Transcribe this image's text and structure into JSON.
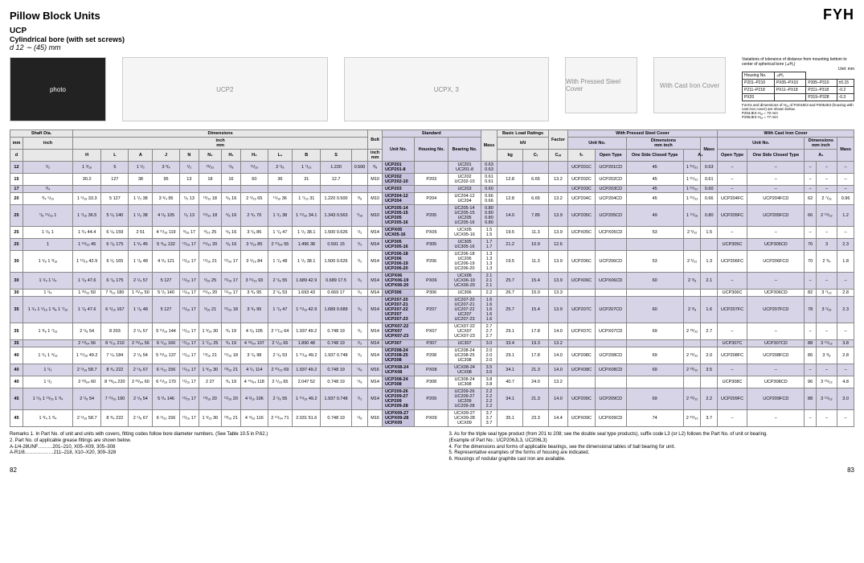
{
  "page": {
    "title": "Pillow Block Units",
    "brand": "FYH",
    "ucp": "UCP",
    "desc": "Cylindrical bore (with set screws)",
    "range": "d 12 ∼ (45) mm",
    "pg_left": "82",
    "pg_right": "83"
  },
  "diagram_labels": {
    "photo": "photo",
    "ucp2": "UCP2",
    "ucpx3": "UCPX, 3",
    "pressed": "With Pressed Steel Cover",
    "cast": "With Cast Iron Cover"
  },
  "tolerance": {
    "note": "Variations of tolerance of distance from mounting bottom to center of spherical bore (⊿H₁)",
    "unit": "Unit: mm",
    "rows": [
      [
        "Housing No.",
        "⊿H₁"
      ],
      [
        "P201–P210",
        "PX05–PX10",
        "P305–P310",
        "±0.15"
      ],
      [
        "P211–P218",
        "PX11–PX18",
        "P311–P318",
        "-0.2"
      ],
      [
        "PX20",
        "",
        "P319–P328",
        "-0.3"
      ]
    ],
    "footnote": "Forms and dimensions of H₁ₐ of P204JE3 and P205JE3 (housing with cast iron cover) are shown below.",
    "extras": [
      "P204JE3 H₁ₐ = 70 mm",
      "P205JE3 H₁ₐ = 77 mm"
    ]
  },
  "headers": {
    "shaft": "Shaft Dia.",
    "dim": "Dimensions",
    "bolt": "Bolt",
    "standard": "Standard",
    "mass": "Mass",
    "load": "Basic Load Ratings",
    "factor": "Factor",
    "pressed": "With Pressed Steel Cover",
    "cast": "With Cast Iron Cover",
    "mm": "mm",
    "inch": "inch",
    "unit": "Unit No.",
    "housing": "Housing No.",
    "bearing": "Bearing No.",
    "kg": "kg",
    "kn": "kN",
    "open": "Open Type",
    "closed": "One Side Closed Type",
    "a1": "A₁",
    "cr": "Cᵣ",
    "cor": "Cₒᵣ",
    "f0": "f₀",
    "d": "d",
    "H": "H",
    "L": "L",
    "A": "A",
    "J": "J",
    "N": "N",
    "N1": "N₁",
    "H1": "H₁",
    "H2": "H₂",
    "L1": "L₁",
    "B": "B",
    "S": "S"
  },
  "rows": [
    {
      "d": "12",
      "in": "¹/₂",
      "H": "1 ³/₁₆",
      "L": "5",
      "A": "1 ¹/₂",
      "J": "3 ³/₄",
      "N": "¹/₂",
      "N1": "¹³/₃₂",
      "H1": "⁵/₈",
      "H2": "¹¹/₁₆",
      "L1": "2 ¹/₈",
      "B": "1 ⁷/₃₂",
      "S": "1.220",
      "bolt": "0.500",
      "boltmm": "³/₈",
      "units": [
        "UCP201",
        "UCP201-8"
      ],
      "housing": "",
      "bearing": [
        "UC201",
        "UC201-8"
      ],
      "mass": [
        "0.63",
        "0.63"
      ],
      "cr": "",
      "cor": "",
      "f0": "",
      "p_open": "UCP201C",
      "p_closed": "UCP201CD",
      "p_a": "45",
      "p_ai": "1 ²⁵/₃₂",
      "p_mass": "0.63",
      "c_open": "–",
      "c_closed": "–",
      "c_a": "–",
      "c_ai": "–",
      "c_mass": "–"
    },
    {
      "d": "15",
      "in": "",
      "H": "30.2",
      "L": "127",
      "A": "38",
      "J": "95",
      "N": "13",
      "N1": "18",
      "H1": "16",
      "H2": "60",
      "L1": "36",
      "B": "31",
      "S": "12.7",
      "bolt": "",
      "boltmm": "M10",
      "units": [
        "UCP202",
        "UCP202-10"
      ],
      "housing": "P203",
      "bearing": [
        "UC202",
        "UC202-10"
      ],
      "mass": [
        "0.61",
        "0.61"
      ],
      "cr": "12.8",
      "cor": "6.65",
      "f0": "13.2",
      "p_open": "UCP202C",
      "p_closed": "UCP202CD",
      "p_a": "45",
      "p_ai": "1 ²⁵/₃₂",
      "p_mass": "0.61",
      "c_open": "–",
      "c_closed": "–",
      "c_a": "–",
      "c_ai": "–",
      "c_mass": "–"
    },
    {
      "d": "17",
      "in": "³/₄",
      "H": "",
      "L": "",
      "A": "",
      "J": "",
      "N": "",
      "N1": "",
      "H1": "",
      "H2": "",
      "L1": "",
      "B": "",
      "S": "",
      "bolt": "",
      "boltmm": "",
      "units": [
        "UCP203"
      ],
      "housing": "",
      "bearing": [
        "UC203"
      ],
      "mass": [
        "0.60"
      ],
      "cr": "",
      "cor": "",
      "f0": "",
      "p_open": "UCP203C",
      "p_closed": "UCP203CD",
      "p_a": "45",
      "p_ai": "1 ²⁵/₃₂",
      "p_mass": "0.60",
      "c_open": "–",
      "c_closed": "–",
      "c_a": "–",
      "c_ai": "–",
      "c_mass": "–"
    },
    {
      "d": "20",
      "in": "³/₄ ⁵/₁₆",
      "H": "1 ⁵/₁₆ 33.3",
      "L": "5 127",
      "A": "1 ¹/₂ 38",
      "J": "3 ³/₄ 95",
      "N": "¹/₂ 13",
      "N1": "¹³/₃₂ 18",
      "H1": "⁵/₈ 16",
      "H2": "2 ⁵/₁₆ 65",
      "L1": "¹¹/₁₆ 36",
      "B": "1 ⁷/₃₂ 31",
      "S": "1.220 0.500",
      "bolt": "³/₈",
      "boltmm": "M10",
      "units": [
        "UCP204-12",
        "UCP204"
      ],
      "housing": "P204",
      "bearing": [
        "UC204-12",
        "UC204"
      ],
      "mass": [
        "0.66",
        "0.66"
      ],
      "cr": "12.8",
      "cor": "6.65",
      "f0": "13.2",
      "p_open": "UCP204C",
      "p_closed": "UCP204CD",
      "p_a": "45",
      "p_ai": "1 ²⁵/₃₂",
      "p_mass": "0.66",
      "c_open": "UCP204FC",
      "c_closed": "UCP204FCD",
      "c_a": "62",
      "c_ai": "2 ⁷/₁₆",
      "c_mass": "0.96"
    },
    {
      "d": "25",
      "in": "⁷/₈ ¹⁵/₁₆ 1",
      "H": "1 ⁷/₁₆ 36.5",
      "L": "5 ¹/₂ 140",
      "A": "1 ¹/₂ 38",
      "J": "4 ¹/₈ 105",
      "N": "¹/₂ 13",
      "N1": "¹⁵/₃₂ 18",
      "H1": "⁵/₈ 16",
      "H2": "2 ³/₄ 70",
      "L1": "1 ¹/₂ 38",
      "B": "1 ¹¹/₃₂ 34.1",
      "S": "1.343 0.563",
      "bolt": "⁷/₁₆",
      "boltmm": "M10",
      "units": [
        "UCP205-14",
        "UCP205-15",
        "UCP205",
        "UCP205-16"
      ],
      "housing": "P205",
      "bearing": [
        "UC205-14",
        "UC205-15",
        "UC205",
        "UC205-16"
      ],
      "mass": [
        "0.80",
        "0.80",
        "0.80",
        "0.80"
      ],
      "cr": "14.0",
      "cor": "7.85",
      "f0": "13.9",
      "p_open": "UCP205C",
      "p_closed": "UCP205CD",
      "p_a": "49",
      "p_ai": "1 ¹⁵/₁₆",
      "p_mass": "0.80",
      "c_open": "UCP205FC",
      "c_closed": "UCP205FCD",
      "c_a": "66",
      "c_ai": "2 ¹⁹/₃₂",
      "c_mass": "1.2"
    },
    {
      "d": "25x",
      "in": "1 ¹/₈ 1",
      "H": "1 ³/₄ 44.4",
      "L": "6 ¹/₄ 159",
      "A": "2 51",
      "J": "4 ¹¹/₁₆ 119",
      "N": "⁹/₁₆ 17",
      "N1": "⁹/₃₂ 25",
      "H1": "⁵/₈ 16",
      "H2": "3 ¹/₈ 86",
      "L1": "1 ⁷/₈ 47",
      "B": "1 ¹/₂ 38.1",
      "S": "1.500 0.626",
      "bolt": "¹/₂",
      "boltmm": "M14",
      "units": [
        "UCPX05",
        "UCX05-16"
      ],
      "housing": "PX05",
      "bearing": [
        "UCX05",
        "UCX05-16"
      ],
      "mass": [
        "1.5",
        "1.5"
      ],
      "cr": "19.5",
      "cor": "11.3",
      "f0": "13.9",
      "p_open": "UCPX05C",
      "p_closed": "UCPX05CD",
      "p_a": "53",
      "p_ai": "2 ³/₃₂",
      "p_mass": "1.5",
      "c_open": "–",
      "c_closed": "–",
      "c_a": "–",
      "c_ai": "–",
      "c_mass": "–"
    },
    {
      "d": "25p",
      "in": "1",
      "H": "1 ²⁵/₃₂ 45",
      "L": "6 ⁷/₈ 175",
      "A": "1 ³/₄ 45",
      "J": "5 ³/₁₆ 132",
      "N": "¹¹/₁₆ 17",
      "N1": "²⁵/₃₂ 20",
      "H1": "⁵/₈ 16",
      "H2": "3 ⁵/₁₆ 85",
      "L1": "2 ¹¹/₆₄ 55",
      "B": "1.496 38",
      "S": "0.591 15",
      "bolt": "¹/₂",
      "boltmm": "M14",
      "units": [
        "UCP305",
        "UCP305-16"
      ],
      "housing": "P305",
      "bearing": [
        "UC305",
        "UC305-16"
      ],
      "mass": [
        "1.7",
        "1.7"
      ],
      "cr": "21.2",
      "cor": "10.9",
      "f0": "12.6",
      "p_open": "",
      "p_closed": "",
      "p_a": "",
      "p_ai": "",
      "p_mass": "",
      "c_open": "UCP305C",
      "c_closed": "UCP305CD",
      "c_a": "76",
      "c_ai": "3",
      "c_mass": "2.3"
    },
    {
      "d": "30",
      "in": "1 ¹/₈ 1 ³/₁₆",
      "H": "1 ¹¹/₁₆ 42.9",
      "L": "6 ¹/₂ 165",
      "A": "1 ⁷/₈ 48",
      "J": "4 ³/₄ 121",
      "N": "¹¹/₁₆ 17",
      "N1": "¹¹/₁₆ 21",
      "H1": "¹¹/₁₆ 17",
      "H2": "3 ⁵/₁₆ 84",
      "L1": "1 ⁷/₈ 48",
      "B": "1 ¹/₂ 38.1",
      "S": "1.500 0.626",
      "bolt": "¹/₂",
      "boltmm": "M14",
      "units": [
        "UCP206-18",
        "UCP206",
        "UCP206-19",
        "UCP206-20"
      ],
      "housing": "P206",
      "bearing": [
        "UC206-18",
        "UC206",
        "UC206-19",
        "UC206-20"
      ],
      "mass": [
        "1.3",
        "1.3",
        "1.3",
        "1.3"
      ],
      "cr": "19.5",
      "cor": "11.3",
      "f0": "13.9",
      "p_open": "UCP206C",
      "p_closed": "UCP206CD",
      "p_a": "53",
      "p_ai": "2 ³/₃₂",
      "p_mass": "1.3",
      "c_open": "UCP206FC",
      "c_closed": "UCP206FCD",
      "c_a": "70",
      "c_ai": "2 ³/₄",
      "c_mass": "1.8"
    },
    {
      "d": "30x",
      "in": "1 ¹/₄ 1 ¹/₄",
      "H": "1 ⁷/₈ 47.6",
      "L": "6 ⁷/₈ 175",
      "A": "2 ¹/₄ 57",
      "J": "5 127",
      "N": "¹¹/₁₆ 17",
      "N1": "⁵/₁₆ 25",
      "H1": "¹¹/₁₆ 17",
      "H2": "3 ²¹/₃₂ 93",
      "L1": "2 ¹/₈ 55",
      "B": "1.689 42.9",
      "S": "0.689 17.5",
      "bolt": "¹/₂",
      "boltmm": "M14",
      "units": [
        "UCPX06",
        "UCPX06-19",
        "UCPX06-20"
      ],
      "housing": "PX06",
      "bearing": [
        "UCX06",
        "UCX06-19",
        "UCX06-20"
      ],
      "mass": [
        "2.1",
        "2.1",
        "2.1"
      ],
      "cr": "25.7",
      "cor": "15.4",
      "f0": "13.9",
      "p_open": "UCPX06C",
      "p_closed": "UCPX06CD",
      "p_a": "60",
      "p_ai": "2 ³/₈",
      "p_mass": "2.1",
      "c_open": "–",
      "c_closed": "–",
      "c_a": "–",
      "c_ai": "–",
      "c_mass": "–"
    },
    {
      "d": "30p",
      "in": "1 ¹/₄",
      "H": "1 ³¹/₃₂ 50",
      "L": "7 ³/₃₂ 180",
      "A": "1 ³¹/₃₂ 50",
      "J": "5 ¹/₂ 140",
      "N": "¹¹/₁₆ 17",
      "N1": "²⁵/₃₂ 20",
      "H1": "¹¹/₁₆ 17",
      "H2": "3 ³/₄ 95",
      "L1": "2 ¹/₈ 53",
      "B": "1.693 43",
      "S": "0.669 17",
      "bolt": "¹/₂",
      "boltmm": "M14",
      "units": [
        "UCP306"
      ],
      "housing": "P306",
      "bearing": [
        "UC306"
      ],
      "mass": [
        "2.2"
      ],
      "cr": "26.7",
      "cor": "15.0",
      "f0": "13.3",
      "p_open": "",
      "p_closed": "",
      "p_a": "",
      "p_ai": "",
      "p_mass": "",
      "c_open": "UCP306C",
      "c_closed": "UCP306CD",
      "c_a": "82",
      "c_ai": "3 ⁷/₃₂",
      "c_mass": "2.8"
    },
    {
      "d": "35",
      "in": "1 ¹/₄ 1 ⁵/₁₆ 1 ³/₈ 1 ⁷/₁₆",
      "H": "1 ⁷/₈ 47.6",
      "L": "6 ⁹/₁₆ 167",
      "A": "1 ⁷/₈ 48",
      "J": "5 127",
      "N": "¹¹/₁₆ 17",
      "N1": "⁵/₁₆ 21",
      "H1": "¹¹/₁₆ 18",
      "H2": "3 ³/₄ 95",
      "L1": "1 ⁷/₈ 47",
      "B": "1 ¹¹/₁₆ 42.9",
      "S": "1.689 0.689",
      "bolt": "¹/₂",
      "boltmm": "M14",
      "units": [
        "UCP207-20",
        "UCP207-21",
        "UCP207-22",
        "UCP207",
        "UCP207-23"
      ],
      "housing": "P207",
      "bearing": [
        "UC207-20",
        "UC207-21",
        "UC207-22",
        "UC207",
        "UC207-23"
      ],
      "mass": [
        "1.6",
        "1.6",
        "1.6",
        "1.6",
        "1.6"
      ],
      "cr": "25.7",
      "cor": "15.4",
      "f0": "13.9",
      "p_open": "UCP207C",
      "p_closed": "UCP207CD",
      "p_a": "60",
      "p_ai": "2 ³/₈",
      "p_mass": "1.6",
      "c_open": "UCP207FC",
      "c_closed": "UCP207FCD",
      "c_a": "78",
      "c_ai": "3 ¹/₁₆",
      "c_mass": "2.3"
    },
    {
      "d": "35x",
      "in": "1 ³/₈ 1 ⁷/₁₆",
      "H": "2 ¹/₈ 54",
      "L": "8 203",
      "A": "2 ¹/₄ 57",
      "J": "5 ¹¹/₁₆ 144",
      "N": "¹¹/₁₆ 17",
      "N1": "1 ³/₁₆ 30",
      "H1": "³/₄ 19",
      "H2": "4 ¹/₈ 105",
      "L1": "2 ¹⁷/₃₂ 64",
      "B": "1.937 49.2",
      "S": "0.748 19",
      "bolt": "¹/₂",
      "boltmm": "M14",
      "units": [
        "UCPX07-22",
        "UCPX07",
        "UCPX07-23"
      ],
      "housing": "PX07",
      "bearing": [
        "UCX07-22",
        "UCX07",
        "UCX07-23"
      ],
      "mass": [
        "2.7",
        "2.7",
        "2.7"
      ],
      "cr": "29.1",
      "cor": "17.8",
      "f0": "14.0",
      "p_open": "UCPX07C",
      "p_closed": "UCPX07CD",
      "p_a": "69",
      "p_ai": "2 ²³/₃₂",
      "p_mass": "2.7",
      "c_open": "–",
      "c_closed": "–",
      "c_a": "–",
      "c_ai": "–",
      "c_mass": "–"
    },
    {
      "d": "35p",
      "in": "",
      "H": "2 ¹³/₆₄ 56",
      "L": "8 ⁹/₃₂ 210",
      "A": "2 ¹³/₆₄ 56",
      "J": "6 ⁵/₁₆ 160",
      "N": "¹¹/₁₆ 17",
      "N1": "1 ⁷/₃₂ 25",
      "H1": "³/₄ 19",
      "H2": "4 ¹³/₆₄ 107",
      "L1": "2 ⁵/₁₆ 65",
      "B": "1.890 48",
      "S": "0.748 19",
      "bolt": "¹/₂",
      "boltmm": "M14",
      "units": [
        "UCP307"
      ],
      "housing": "P307",
      "bearing": [
        "UC307"
      ],
      "mass": [
        "3.0"
      ],
      "cr": "33.4",
      "cor": "19.3",
      "f0": "13.2",
      "p_open": "",
      "p_closed": "",
      "p_a": "",
      "p_ai": "",
      "p_mass": "",
      "c_open": "UCP307C",
      "c_closed": "UCP307CD",
      "c_a": "88",
      "c_ai": "3 ¹⁵/₃₂",
      "c_mass": "3.8"
    },
    {
      "d": "40",
      "in": "1 ¹/₂ 1 ⁹/₁₆",
      "H": "1 ¹⁵/₁₆ 49.2",
      "L": "7 ¹/₄ 184",
      "A": "2 ¹/₈ 54",
      "J": "5 ¹³/₃₂ 137",
      "N": "¹¹/₁₆ 17",
      "N1": "¹³/₁₆ 21",
      "H1": "¹¹/₁₆ 18",
      "H2": "3 ⁷/₈ 98",
      "L1": "2 ¹/₈ 53",
      "B": "1 ¹⁵/₁₆ 49.2",
      "S": "1.937 0.748",
      "bolt": "¹/₂",
      "boltmm": "M14",
      "units": [
        "UCP208-24",
        "UCP208-25",
        "UCP208"
      ],
      "housing": "P208",
      "bearing": [
        "UC208-24",
        "UC208-25",
        "UC208"
      ],
      "mass": [
        "2.0",
        "2.0",
        "2.0"
      ],
      "cr": "29.1",
      "cor": "17.8",
      "f0": "14.0",
      "p_open": "UCP208C",
      "p_closed": "UCP208CD",
      "p_a": "69",
      "p_ai": "2 ²³/₃₂",
      "p_mass": "2.0",
      "c_open": "UCP208FC",
      "c_closed": "UCP208FCD",
      "c_a": "86",
      "c_ai": "3 ³/₈",
      "c_mass": "2.8"
    },
    {
      "d": "40x",
      "in": "1 ¹/₂",
      "H": "2 ⁵/₁₆ 58.7",
      "L": "8 ³/₄ 222",
      "A": "2 ⁵/₈ 67",
      "J": "6 ⁵/₃₂ 156",
      "N": "¹¹/₁₆ 17",
      "N1": "1 ³/₁₆ 30",
      "H1": "¹³/₁₆ 21",
      "H2": "4 ¹/₂ 114",
      "L1": "2 ²¹/₃₂ 69",
      "B": "1.937 49.2",
      "S": "0.748 19",
      "bolt": "⁵/₈",
      "boltmm": "M16",
      "units": [
        "UCPX08-24",
        "UCPX08"
      ],
      "housing": "PX08",
      "bearing": [
        "UCX08-24",
        "UCX08"
      ],
      "mass": [
        "3.5",
        "3.5"
      ],
      "cr": "34.1",
      "cor": "21.3",
      "f0": "14.0",
      "p_open": "UCPX08C",
      "p_closed": "UCPX08CD",
      "p_a": "69",
      "p_ai": "2 ²³/₃₂",
      "p_mass": "3.5",
      "c_open": "–",
      "c_closed": "–",
      "c_a": "–",
      "c_ai": "–",
      "c_mass": "–"
    },
    {
      "d": "40p",
      "in": "1 ¹/₂",
      "H": "2 ²³/₆₄ 60",
      "L": "8 ⁴³/₆₄ 220",
      "A": "2 ²³/₆₄ 60",
      "J": "6 ¹¹/₁₆ 170",
      "N": "¹¹/₁₆ 17",
      "N1": "2 27",
      "H1": "³/₄ 19",
      "H2": "4 ⁴¹/₆₄ 118",
      "L1": "2 ⁵/₁₆ 65",
      "B": "2.047 52",
      "S": "0.748 19",
      "bolt": "⁵/₈",
      "boltmm": "M14",
      "units": [
        "UCP308-24",
        "UCP308"
      ],
      "housing": "P308",
      "bearing": [
        "UC308-24",
        "UC308"
      ],
      "mass": [
        "3.8",
        "3.8"
      ],
      "cr": "40.7",
      "cor": "24.0",
      "f0": "13.2",
      "p_open": "",
      "p_closed": "",
      "p_a": "",
      "p_ai": "",
      "p_mass": "",
      "c_open": "UCP308C",
      "c_closed": "UCP308CD",
      "c_a": "96",
      "c_ai": "3 ²⁵/₃₂",
      "c_mass": "4.8"
    },
    {
      "d": "45",
      "in": "1 ⁵/₈ 1 ¹¹/₁₆ 1 ³/₄",
      "H": "2 ¹/₈ 54",
      "L": "7 ¹¹/₁₆ 190",
      "A": "2 ¹/₈ 54",
      "J": "5 ³/₄ 146",
      "N": "¹¹/₁₆ 17",
      "N1": "¹³/₁₆ 20",
      "H1": "¹¹/₁₆ 20",
      "H2": "4 ³/₁₆ 106",
      "L1": "2 ¹/₈ 55",
      "B": "1 ¹⁵/₁₆ 49.2",
      "S": "1.937 0.748",
      "bolt": "¹/₂",
      "boltmm": "M14",
      "units": [
        "UCP209-26",
        "UCP209-27",
        "UCP209",
        "UCP209-28"
      ],
      "housing": "P209",
      "bearing": [
        "UC209-26",
        "UC209-27",
        "UC209",
        "UC209-28"
      ],
      "mass": [
        "2.2",
        "2.2",
        "2.2",
        "2.2"
      ],
      "cr": "34.1",
      "cor": "21.3",
      "f0": "14.0",
      "p_open": "UCP209C",
      "p_closed": "UCP209CD",
      "p_a": "69",
      "p_ai": "2 ²³/₃₂",
      "p_mass": "2.2",
      "c_open": "UCP209FC",
      "c_closed": "UCP209FCD",
      "c_a": "88",
      "c_ai": "3 ¹⁵/₃₂",
      "c_mass": "3.0"
    },
    {
      "d": "45x",
      "in": "1 ³/₄ 1 ³/₄",
      "H": "2 ⁵/₁₆ 58.7",
      "L": "8 ³/₄ 222",
      "A": "2 ⁵/₈ 67",
      "J": "6 ⁵/₃₂ 156",
      "N": "¹¹/₁₆ 17",
      "N1": "1 ³/₁₆ 30",
      "H1": "¹³/₁₆ 21",
      "H2": "4 ⁹/₁₆ 116",
      "L1": "2 ⁵¹/₆₄ 71",
      "B": "2.031 51.6",
      "S": "0.748 19",
      "bolt": "⁵/₈",
      "boltmm": "M16",
      "units": [
        "UCPX09-27",
        "UCPX09-28",
        "UCPX09"
      ],
      "housing": "PX09",
      "bearing": [
        "UCX09-27",
        "UCX09-28",
        "UCX09"
      ],
      "mass": [
        "3.7",
        "3.7",
        "3.7"
      ],
      "cr": "35.1",
      "cor": "23.3",
      "f0": "14.4",
      "p_open": "UCPX09C",
      "p_closed": "UCPX09CD",
      "p_a": "74",
      "p_ai": "2 ²⁹/₃₂",
      "p_mass": "3.7",
      "c_open": "–",
      "c_closed": "–",
      "c_a": "–",
      "c_ai": "–",
      "c_mass": "–"
    }
  ],
  "remarks": {
    "left": [
      "Remarks   1. In Part No. of unit and units with covers, fitting codes follow bore diameter numbers. (See Table 10.5 in P.62.)",
      "2. Part No. of applicable grease fittings are shown below.",
      "   A-1/4-28UNF………201–210, X05–X09, 305–308",
      "   A-R1/8………………211–218, X10–X20, 309–328"
    ],
    "right": [
      "3. As for the triple seal type product (from 201 to 208; see the double seal type products), suffix code L3 (or L2) follows the Part No. of unit or bearing.",
      "   (Example of Part No.: UCP206JL3, UC206L3)",
      "4. For the dimensions and forms of applicable bearings, see the dimensional tables of ball bearing for unit.",
      "5. Representative examples of the forms of housing are indicated.",
      "6. Housings of nodular graphite cast iron are available."
    ]
  }
}
